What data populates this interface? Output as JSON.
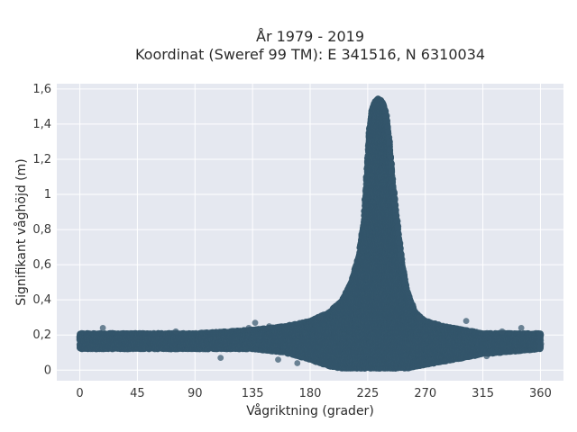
{
  "chart_data": {
    "type": "scatter",
    "title_line1": "År 1979 - 2019",
    "title_line2": "Koordinat (Sweref 99 TM): E 341516, N 6310034",
    "xlabel": "Vågriktning (grader)",
    "ylabel": "Signifikant våghöjd (m)",
    "xlim": [
      -18,
      378
    ],
    "ylim": [
      -0.06,
      1.63
    ],
    "x_ticks": [
      0,
      45,
      90,
      135,
      180,
      225,
      270,
      315,
      360
    ],
    "x_tick_labels": [
      "0",
      "45",
      "90",
      "135",
      "180",
      "225",
      "270",
      "315",
      "360"
    ],
    "y_ticks": [
      0,
      0.2,
      0.4,
      0.6,
      0.8,
      1,
      1.2,
      1.4,
      1.6
    ],
    "y_tick_labels": [
      "0",
      "0,2",
      "0,4",
      "0,6",
      "0,8",
      "1",
      "1,2",
      "1,4",
      "1,6"
    ],
    "grid": true,
    "marker_color": "#34566b",
    "plot_background": "#e5e8f0",
    "envelope": {
      "x": [
        0,
        45,
        90,
        135,
        160,
        180,
        195,
        205,
        212,
        218,
        222,
        226,
        228,
        230,
        233,
        236,
        239,
        242,
        245,
        248,
        252,
        256,
        262,
        270,
        285,
        300,
        315,
        330,
        345,
        360
      ],
      "y_max": [
        0.21,
        0.21,
        0.21,
        0.23,
        0.25,
        0.28,
        0.33,
        0.4,
        0.5,
        0.65,
        0.85,
        1.35,
        1.48,
        1.52,
        1.55,
        1.53,
        1.48,
        1.3,
        1.05,
        0.85,
        0.6,
        0.45,
        0.33,
        0.28,
        0.25,
        0.23,
        0.21,
        0.21,
        0.21,
        0.21
      ],
      "y_min": [
        0.12,
        0.12,
        0.12,
        0.12,
        0.1,
        0.06,
        0.02,
        0.01,
        0.01,
        0.01,
        0.01,
        0.01,
        0.01,
        0.01,
        0.01,
        0.01,
        0.01,
        0.01,
        0.01,
        0.01,
        0.01,
        0.01,
        0.02,
        0.03,
        0.05,
        0.07,
        0.09,
        0.1,
        0.11,
        0.12
      ]
    },
    "outliers": [
      {
        "x": 18,
        "y": 0.24
      },
      {
        "x": 75,
        "y": 0.22
      },
      {
        "x": 110,
        "y": 0.07
      },
      {
        "x": 132,
        "y": 0.24
      },
      {
        "x": 137,
        "y": 0.27
      },
      {
        "x": 148,
        "y": 0.25
      },
      {
        "x": 155,
        "y": 0.06
      },
      {
        "x": 170,
        "y": 0.04
      },
      {
        "x": 188,
        "y": 0.3
      },
      {
        "x": 265,
        "y": 0.3
      },
      {
        "x": 302,
        "y": 0.28
      },
      {
        "x": 318,
        "y": 0.08
      },
      {
        "x": 330,
        "y": 0.22
      },
      {
        "x": 345,
        "y": 0.24
      }
    ]
  }
}
